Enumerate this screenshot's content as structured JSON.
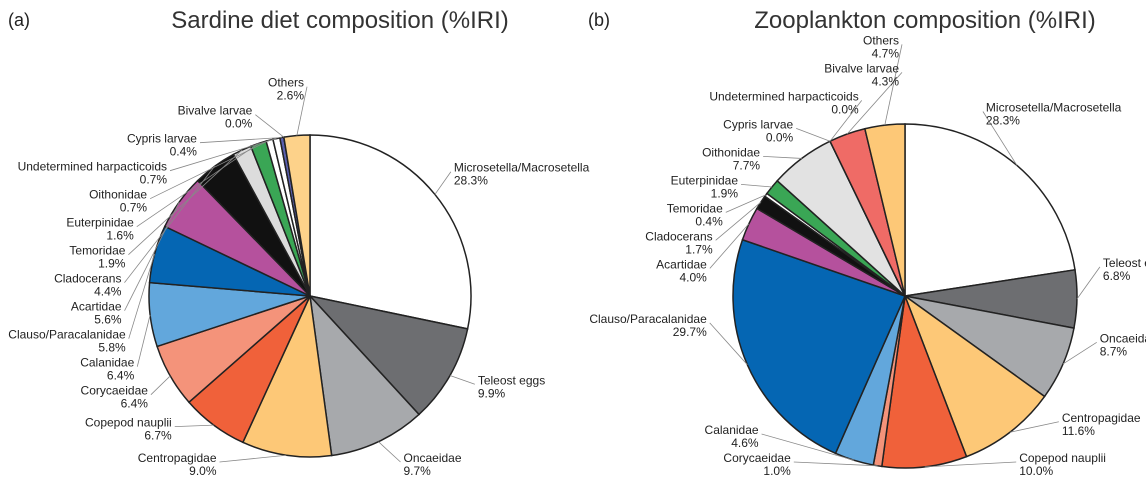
{
  "chart_data": [
    {
      "type": "pie",
      "panel_label": "(a)",
      "title": "Sardine diet composition (%IRI)",
      "categories": [
        "Microsetella/Macrosetella",
        "Teleost eggs",
        "Oncaeidae",
        "Centropagidae",
        "Copepod nauplii",
        "Corycaeidae",
        "Calanidae",
        "Clauso/Paracalanidae",
        "Acartidae",
        "Cladocerans",
        "Temoridae",
        "Euterpinidae",
        "Oithonidae",
        "Undetermined harpacticoids",
        "Cypris larvae",
        "Bivalve larvae",
        "Others"
      ],
      "values": [
        28.3,
        9.9,
        9.7,
        9.0,
        6.7,
        6.4,
        6.4,
        5.8,
        5.6,
        4.4,
        1.9,
        1.6,
        0.7,
        0.7,
        0.4,
        0.0,
        2.6
      ],
      "value_labels": [
        "28.3%",
        "9.9%",
        "9.7%",
        "9.0%",
        "6.7%",
        "6.4%",
        "6.4%",
        "5.8%",
        "5.6%",
        "4.4%",
        "1.9%",
        "1.6%",
        "0.7%",
        "0.7%",
        "0.4%",
        "0.0%",
        "2.6%"
      ],
      "colors": [
        "#ffffff",
        "#6d6e71",
        "#a7a9ac",
        "#fdc877",
        "#f0613a",
        "#f4937a",
        "#62a7dc",
        "#0566b3",
        "#b5519d",
        "#111111",
        "#dcdcdc",
        "#3aa655",
        "#ffffff",
        "#ffffff",
        "#5a5fb0",
        "#ffffff",
        "#fdd28a"
      ]
    },
    {
      "type": "pie",
      "panel_label": "(b)",
      "title": "Zooplankton composition (%IRI)",
      "categories": [
        "Microsetella/Macrosetella",
        "Teleost eggs",
        "Oncaeidae",
        "Centropagidae",
        "Copepod nauplii",
        "Corycaeidae",
        "Calanidae",
        "Clauso/Paracalanidae",
        "Acartidae",
        "Cladocerans",
        "Temoridae",
        "Euterpinidae",
        "Oithonidae",
        "Undetermined harpacticoids",
        "Cypris larvae",
        "Bivalve larvae",
        "Others"
      ],
      "values": [
        28.3,
        6.8,
        8.7,
        11.6,
        10.0,
        1.0,
        4.6,
        29.7,
        4.0,
        1.7,
        0.4,
        1.9,
        7.7,
        0.0,
        0.0,
        4.3,
        4.7
      ],
      "value_labels": [
        "28.3%",
        "6.8%",
        "8.7%",
        "11.6%",
        "10.0%",
        "1.0%",
        "4.6%",
        "29.7%",
        "4.0%",
        "1.7%",
        "0.4%",
        "1.9%",
        "7.7%",
        "0.0%",
        "0.0%",
        "4.3%",
        "4.7%"
      ],
      "colors": [
        "#ffffff",
        "#6d6e71",
        "#a7a9ac",
        "#fdc877",
        "#f0613a",
        "#f4937a",
        "#62a7dc",
        "#0566b3",
        "#b5519d",
        "#111111",
        "#ffffff",
        "#3aa655",
        "#e2e2e2",
        "#ffffff",
        "#ffffff",
        "#ef6b66",
        "#fdc877"
      ]
    }
  ]
}
